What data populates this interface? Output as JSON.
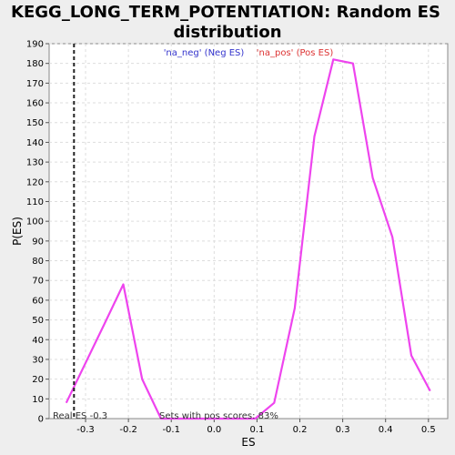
{
  "chart_data": {
    "type": "line",
    "title_line1": "KEGG_LONG_TERM_POTENTIATION: Random ES",
    "title_line2": "distribution",
    "xlabel": "ES",
    "ylabel": "P(ES)",
    "xlim": [
      -0.385,
      0.545
    ],
    "ylim": [
      0,
      190
    ],
    "xticks": [
      -0.3,
      -0.2,
      -0.1,
      0.0,
      0.1,
      0.2,
      0.3,
      0.4,
      0.5
    ],
    "xtick_labels": [
      "-0.3",
      "-0.2",
      "-0.1",
      "0.0",
      "0.1",
      "0.2",
      "0.3",
      "0.4",
      "0.5"
    ],
    "yticks": [
      0,
      10,
      20,
      30,
      40,
      50,
      60,
      70,
      80,
      90,
      100,
      110,
      120,
      130,
      140,
      150,
      160,
      170,
      180,
      190
    ],
    "grid": true,
    "legend": [
      {
        "label": "'na_neg' (Neg ES)",
        "color": "#3333cc"
      },
      {
        "label": "'na_pos' (Pos ES)",
        "color": "#dd3333"
      }
    ],
    "series": [
      {
        "color": "#ee44ee",
        "x": [
          -0.345,
          -0.256,
          -0.212,
          -0.168,
          -0.124,
          -0.08,
          -0.036,
          0.008,
          0.052,
          0.096,
          0.14,
          0.188,
          0.234,
          0.278,
          0.324,
          0.37,
          0.416,
          0.46,
          0.504
        ],
        "y": [
          8,
          48,
          68,
          20,
          0,
          0,
          0,
          0,
          0,
          0,
          8,
          56,
          143,
          182,
          180,
          122,
          92,
          32,
          14
        ]
      }
    ],
    "real_es": {
      "x": -0.327,
      "label": "Real ES -0.3"
    },
    "annotation": "Sets with pos scores: 83%"
  }
}
